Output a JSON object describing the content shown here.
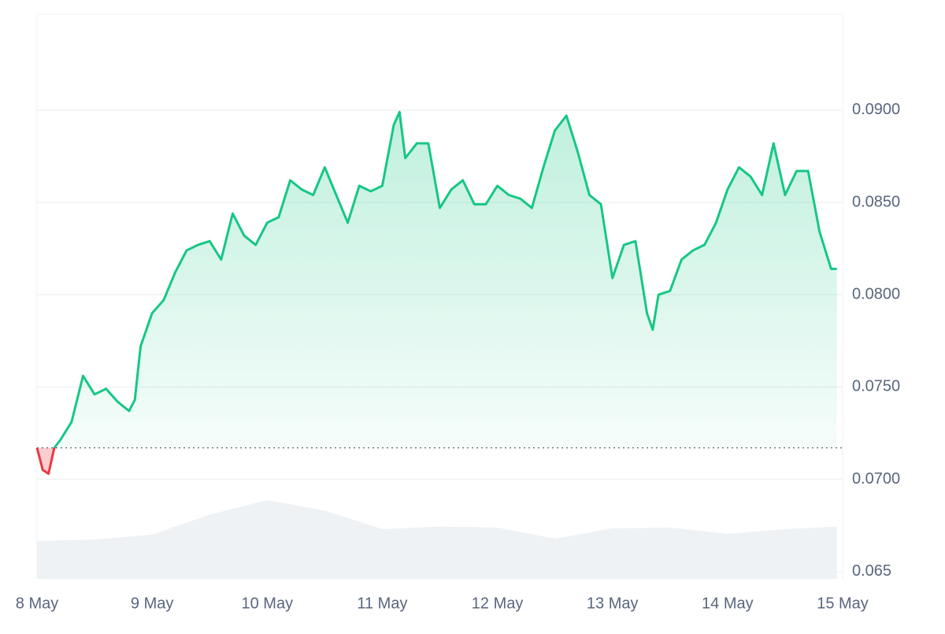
{
  "chart_data": {
    "type": "line",
    "x": [
      0,
      0.05,
      0.1,
      0.15,
      0.2,
      0.3,
      0.4,
      0.5,
      0.6,
      0.7,
      0.8,
      0.85,
      0.9,
      1.0,
      1.1,
      1.2,
      1.3,
      1.4,
      1.5,
      1.6,
      1.7,
      1.8,
      1.9,
      2.0,
      2.1,
      2.2,
      2.3,
      2.4,
      2.5,
      2.6,
      2.7,
      2.8,
      2.9,
      3.0,
      3.1,
      3.15,
      3.2,
      3.3,
      3.4,
      3.5,
      3.6,
      3.7,
      3.8,
      3.9,
      4.0,
      4.1,
      4.2,
      4.3,
      4.4,
      4.5,
      4.6,
      4.7,
      4.8,
      4.9,
      5.0,
      5.1,
      5.2,
      5.3,
      5.35,
      5.4,
      5.5,
      5.6,
      5.7,
      5.8,
      5.9,
      6.0,
      6.1,
      6.2,
      6.3,
      6.4,
      6.5,
      6.6,
      6.7,
      6.8,
      6.9,
      6.95
    ],
    "series": [
      {
        "color": "#16c784",
        "negative_color": "#ea3943",
        "values": [
          0.0717,
          0.0705,
          0.0703,
          0.0717,
          0.0721,
          0.0731,
          0.0756,
          0.0746,
          0.0749,
          0.0742,
          0.0737,
          0.0743,
          0.0772,
          0.079,
          0.0797,
          0.0812,
          0.0824,
          0.0827,
          0.0829,
          0.0819,
          0.0844,
          0.0832,
          0.0827,
          0.0839,
          0.0842,
          0.0862,
          0.0857,
          0.0854,
          0.0869,
          0.0854,
          0.0839,
          0.0859,
          0.0856,
          0.0859,
          0.0892,
          0.0899,
          0.0874,
          0.0882,
          0.0882,
          0.0847,
          0.0857,
          0.0862,
          0.0849,
          0.0849,
          0.0859,
          0.0854,
          0.0852,
          0.0847,
          0.0869,
          0.0889,
          0.0897,
          0.0877,
          0.0854,
          0.0849,
          0.0809,
          0.0827,
          0.0829,
          0.079,
          0.0781,
          0.08,
          0.0802,
          0.0819,
          0.0824,
          0.0827,
          0.0839,
          0.0857,
          0.0869,
          0.0864,
          0.0854,
          0.0882,
          0.0854,
          0.0867,
          0.0867,
          0.0834,
          0.0814,
          0.0814
        ]
      }
    ],
    "baseline": 0.0717,
    "volume": {
      "color": "#eff2f5",
      "x": [
        0,
        0.5,
        1.0,
        1.5,
        2.0,
        2.5,
        3.0,
        3.5,
        4.0,
        4.5,
        5.0,
        5.5,
        6.0,
        6.5,
        6.95
      ],
      "values": [
        47,
        49,
        55,
        80,
        98,
        85,
        62,
        65,
        64,
        50,
        63,
        64,
        56,
        62,
        65
      ]
    },
    "xlim": [
      0,
      7
    ],
    "xticks": [
      {
        "value": 0,
        "label": "8 May"
      },
      {
        "value": 1,
        "label": "9 May"
      },
      {
        "value": 2,
        "label": "10 May"
      },
      {
        "value": 3,
        "label": "11 May"
      },
      {
        "value": 4,
        "label": "12 May"
      },
      {
        "value": 5,
        "label": "13 May"
      },
      {
        "value": 6,
        "label": "14 May"
      },
      {
        "value": 7,
        "label": "15 May"
      }
    ],
    "ylim": [
      0.0646,
      0.0952
    ],
    "yticks": [
      0.065,
      {
        "value": 0.07,
        "label": "0.0700"
      },
      {
        "value": 0.075,
        "label": "0.0750"
      },
      {
        "value": 0.08,
        "label": "0.0800"
      },
      {
        "value": 0.085,
        "label": "0.0850"
      },
      {
        "value": 0.09,
        "label": "0.0900"
      }
    ],
    "grid": true
  }
}
